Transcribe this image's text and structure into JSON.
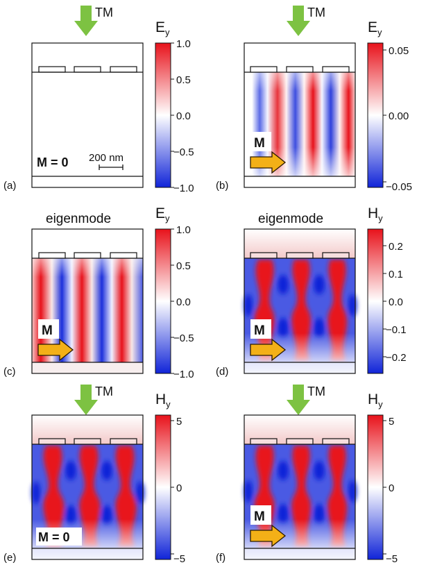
{
  "colors": {
    "positive": "#e8121b",
    "negative": "#1024d8",
    "arrow_green": "#7dc242",
    "arrow_yellow": "#f3b017",
    "arrow_yellow_edge": "#2a1a00"
  },
  "panels": [
    {
      "tag": "(a)",
      "incident": "TM",
      "header": "",
      "field_symbol": "E",
      "field_sub": "y",
      "ticks": [
        "1.0",
        "0.5",
        "0.0",
        "−0.5",
        "−1.0"
      ],
      "magnet_label": "M = 0",
      "scalebar_label": "200 nm",
      "pattern": "none"
    },
    {
      "tag": "(b)",
      "incident": "TM",
      "header": "",
      "field_symbol": "E",
      "field_sub": "y",
      "ticks": [
        "0.05",
        "0.00",
        "−0.05"
      ],
      "magnet_label": "M",
      "scalebar_label": "",
      "pattern": "E_weak"
    },
    {
      "tag": "(c)",
      "incident": "",
      "header": "eigenmode",
      "field_symbol": "E",
      "field_sub": "y",
      "ticks": [
        "1.0",
        "0.5",
        "0.0",
        "−0.5",
        "−1.0"
      ],
      "magnet_label": "M",
      "scalebar_label": "",
      "pattern": "E_strong"
    },
    {
      "tag": "(d)",
      "incident": "",
      "header": "eigenmode",
      "field_symbol": "H",
      "field_sub": "y",
      "ticks": [
        "0.2",
        "0.1",
        "0.0",
        "−0.1",
        "−0.2"
      ],
      "magnet_label": "M",
      "scalebar_label": "",
      "pattern": "H_wavy"
    },
    {
      "tag": "(e)",
      "incident": "TM",
      "header": "",
      "field_symbol": "H",
      "field_sub": "y",
      "ticks": [
        "5",
        "0",
        "−5"
      ],
      "magnet_label": "M = 0",
      "scalebar_label": "",
      "pattern": "H_sym"
    },
    {
      "tag": "(f)",
      "incident": "TM",
      "header": "",
      "field_symbol": "H",
      "field_sub": "y",
      "ticks": [
        "5",
        "0",
        "−5"
      ],
      "magnet_label": "M",
      "scalebar_label": "",
      "pattern": "H_wavy"
    }
  ]
}
